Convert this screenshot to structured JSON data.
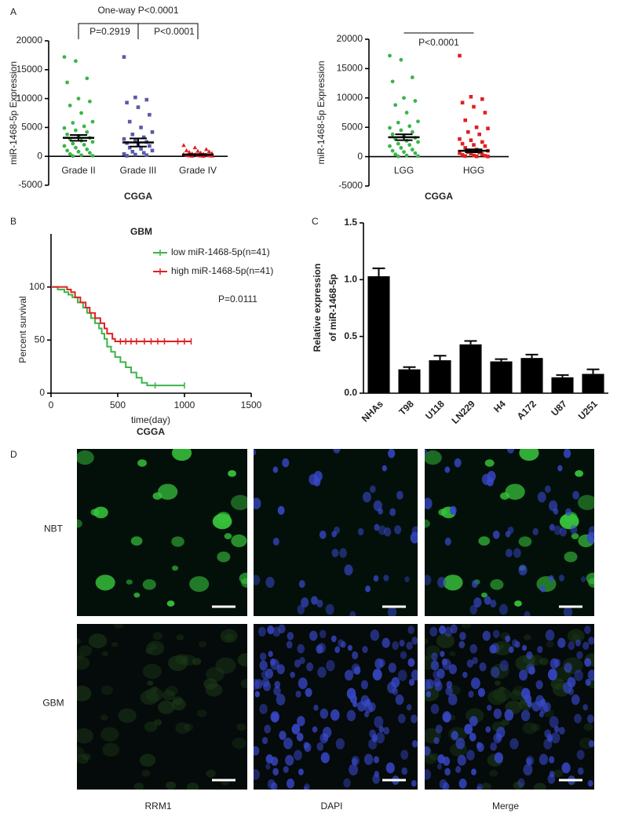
{
  "chart_data": [
    {
      "type": "dotplot",
      "panel_label": "A",
      "ylabel": "miR-1468-5p Expression",
      "xlabel": "CGGA",
      "overall": "One-way P<0.0001",
      "comparisons": [
        "P=0.2919",
        "P<0.0001"
      ],
      "categories": [
        "Grade II",
        "Grade III",
        "Grade IV"
      ],
      "colors": [
        "#3cb44b",
        "#5a5aa8",
        "#e02020"
      ],
      "markers": [
        "circle",
        "square",
        "triangle"
      ],
      "points": [
        [
          17200,
          16500,
          13500,
          12800,
          10000,
          9500,
          8800,
          7500,
          6000,
          5800,
          5200,
          4900,
          4500,
          4200,
          3800,
          3500,
          3200,
          3000,
          2700,
          2500,
          2200,
          2000,
          1800,
          1500,
          1200,
          1000,
          800,
          600,
          400,
          200,
          100,
          50
        ],
        [
          17200,
          10200,
          9800,
          9300,
          8500,
          7200,
          6000,
          5000,
          4200,
          3800,
          3300,
          3000,
          2800,
          2500,
          2300,
          2000,
          1800,
          1500,
          1300,
          1000,
          800,
          600,
          400,
          300,
          200,
          100
        ],
        [
          1900,
          1500,
          1200,
          1000,
          900,
          800,
          700,
          600,
          500,
          450,
          400,
          350,
          300,
          250,
          200,
          150,
          120,
          100,
          80,
          60,
          40,
          20
        ]
      ],
      "means": [
        3200,
        2400,
        300
      ],
      "errors": [
        500,
        700,
        80
      ],
      "ylim": [
        -5000,
        20000
      ],
      "yticks": [
        -5000,
        0,
        5000,
        10000,
        15000,
        20000
      ]
    },
    {
      "type": "dotplot",
      "ylabel": "miR-1468-5p Expression",
      "xlabel": "CGGA",
      "comparisons": [
        "P<0.0001"
      ],
      "categories": [
        "LGG",
        "HGG"
      ],
      "colors": [
        "#3cb44b",
        "#e02020"
      ],
      "markers": [
        "circle",
        "square"
      ],
      "points": [
        [
          17200,
          16500,
          13500,
          12800,
          10000,
          9500,
          8800,
          7500,
          6000,
          5800,
          5200,
          4900,
          4500,
          4200,
          3800,
          3500,
          3200,
          3000,
          2700,
          2500,
          2200,
          2000,
          1800,
          1500,
          1200,
          1000,
          800,
          600,
          400,
          200,
          100,
          50
        ],
        [
          17200,
          10200,
          9800,
          9200,
          8500,
          7500,
          6200,
          5000,
          4800,
          4200,
          3800,
          3000,
          2800,
          2500,
          2200,
          2000,
          1800,
          1500,
          1200,
          1000,
          800,
          700,
          600,
          500,
          400,
          300,
          200,
          150,
          100,
          50,
          30
        ]
      ],
      "means": [
        3300,
        1000
      ],
      "errors": [
        500,
        250
      ],
      "ylim": [
        -5000,
        20000
      ],
      "yticks": [
        -5000,
        0,
        5000,
        10000,
        15000,
        20000
      ]
    },
    {
      "type": "line",
      "panel_label": "B",
      "title": "GBM",
      "annotation": "P=0.0111",
      "xlabel": "time(day)",
      "source": "CGGA",
      "ylabel": "Percent survival",
      "series": [
        {
          "name": "low miR-1468-5p(n=41)",
          "color": "#3cb44b",
          "x": [
            0,
            50,
            50,
            100,
            100,
            130,
            130,
            160,
            160,
            200,
            200,
            240,
            240,
            270,
            270,
            300,
            300,
            330,
            330,
            360,
            360,
            380,
            380,
            400,
            400,
            420,
            420,
            450,
            450,
            480,
            480,
            520,
            520,
            560,
            560,
            600,
            600,
            640,
            640,
            680,
            680,
            720,
            720,
            1000
          ],
          "values": [
            100,
            100,
            97.6,
            97.6,
            95.1,
            95.1,
            92.7,
            92.7,
            90.2,
            90.2,
            85.4,
            85.4,
            80.5,
            80.5,
            75.6,
            75.6,
            70.7,
            70.7,
            65.9,
            65.9,
            61,
            61,
            56.1,
            56.1,
            51.2,
            51.2,
            43.9,
            43.9,
            39,
            39,
            34.1,
            34.1,
            29.3,
            29.3,
            24.4,
            24.4,
            19.5,
            19.5,
            14.6,
            14.6,
            9.8,
            9.8,
            7.3,
            7.3
          ],
          "censored_x": [
            780,
            1000
          ],
          "censored_y": [
            7.3,
            7.3
          ]
        },
        {
          "name": "high miR-1468-5p(n=41)",
          "color": "#e02020",
          "x": [
            0,
            120,
            120,
            150,
            150,
            180,
            180,
            220,
            220,
            260,
            260,
            290,
            290,
            330,
            330,
            370,
            370,
            400,
            400,
            420,
            420,
            460,
            460,
            480,
            480,
            1050
          ],
          "values": [
            100,
            100,
            97.6,
            97.6,
            95.1,
            95.1,
            90.2,
            90.2,
            85.4,
            85.4,
            80.5,
            80.5,
            75.6,
            75.6,
            70.7,
            70.7,
            65.9,
            65.9,
            61,
            61,
            56.1,
            56.1,
            51.2,
            51.2,
            48.8,
            48.8
          ],
          "censored_x": [
            520,
            560,
            600,
            640,
            700,
            750,
            800,
            850,
            950,
            1000,
            1050
          ],
          "censored_y": [
            48.8,
            48.8,
            48.8,
            48.8,
            48.8,
            48.8,
            48.8,
            48.8,
            48.8,
            48.8,
            48.8
          ]
        }
      ],
      "xlim": [
        0,
        1500
      ],
      "xticks": [
        0,
        500,
        1000,
        1500
      ],
      "ylim": [
        0,
        150
      ],
      "yticks": [
        0,
        50,
        100
      ]
    },
    {
      "type": "bar",
      "panel_label": "C",
      "ylabel": [
        "Relative expression",
        "of miR-1468-5p"
      ],
      "categories": [
        "NHAs",
        "T98",
        "U118",
        "LN229",
        "H4",
        "A172",
        "U87",
        "U251"
      ],
      "values": [
        1.03,
        0.21,
        0.29,
        0.43,
        0.28,
        0.31,
        0.14,
        0.17
      ],
      "errors": [
        0.07,
        0.02,
        0.04,
        0.03,
        0.02,
        0.03,
        0.02,
        0.04
      ],
      "color": "#000000",
      "ylim": [
        0,
        1.5
      ],
      "yticks": [
        {
          "value": 0,
          "label": "0.0"
        },
        0.5,
        {
          "value": 1,
          "label": "1.0"
        },
        1.5
      ]
    }
  ],
  "micrographs": {
    "panel_label": "D",
    "rows": [
      "NBT",
      "GBM"
    ],
    "columns": [
      "RRM1",
      "DAPI",
      "Merge"
    ]
  }
}
